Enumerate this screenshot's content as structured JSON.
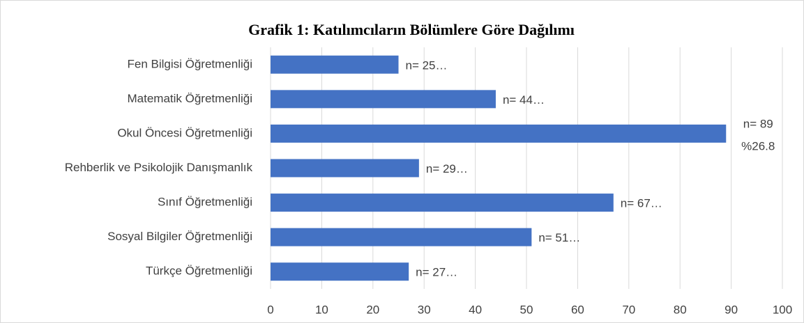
{
  "chart_data": {
    "type": "bar",
    "orientation": "horizontal",
    "title": "Grafik 1: Katılımcıların Bölümlere Göre Dağılımı",
    "categories": [
      "Fen Bilgisi Öğretmenliği",
      "Matematik Öğretmenliği",
      "Okul Öncesi Öğretmenliği",
      "Rehberlik ve Psikolojik Danışmanlık",
      "Sınıf Öğretmenliği",
      "Sosyal Bilgiler Öğretmenliği",
      "Türkçe Öğretmenliği"
    ],
    "values": [
      25,
      44,
      89,
      29,
      67,
      51,
      27
    ],
    "value_labels": [
      "n= 25…",
      "n= 44…",
      [
        "n= 89",
        "%26.8"
      ],
      "n= 29…",
      "n= 67…",
      "n= 51…",
      "n= 27…"
    ],
    "color": "#4472c4",
    "xlim": [
      0,
      100
    ],
    "xticks": [
      0,
      10,
      20,
      30,
      40,
      50,
      60,
      70,
      80,
      90,
      100
    ],
    "grid": true
  }
}
